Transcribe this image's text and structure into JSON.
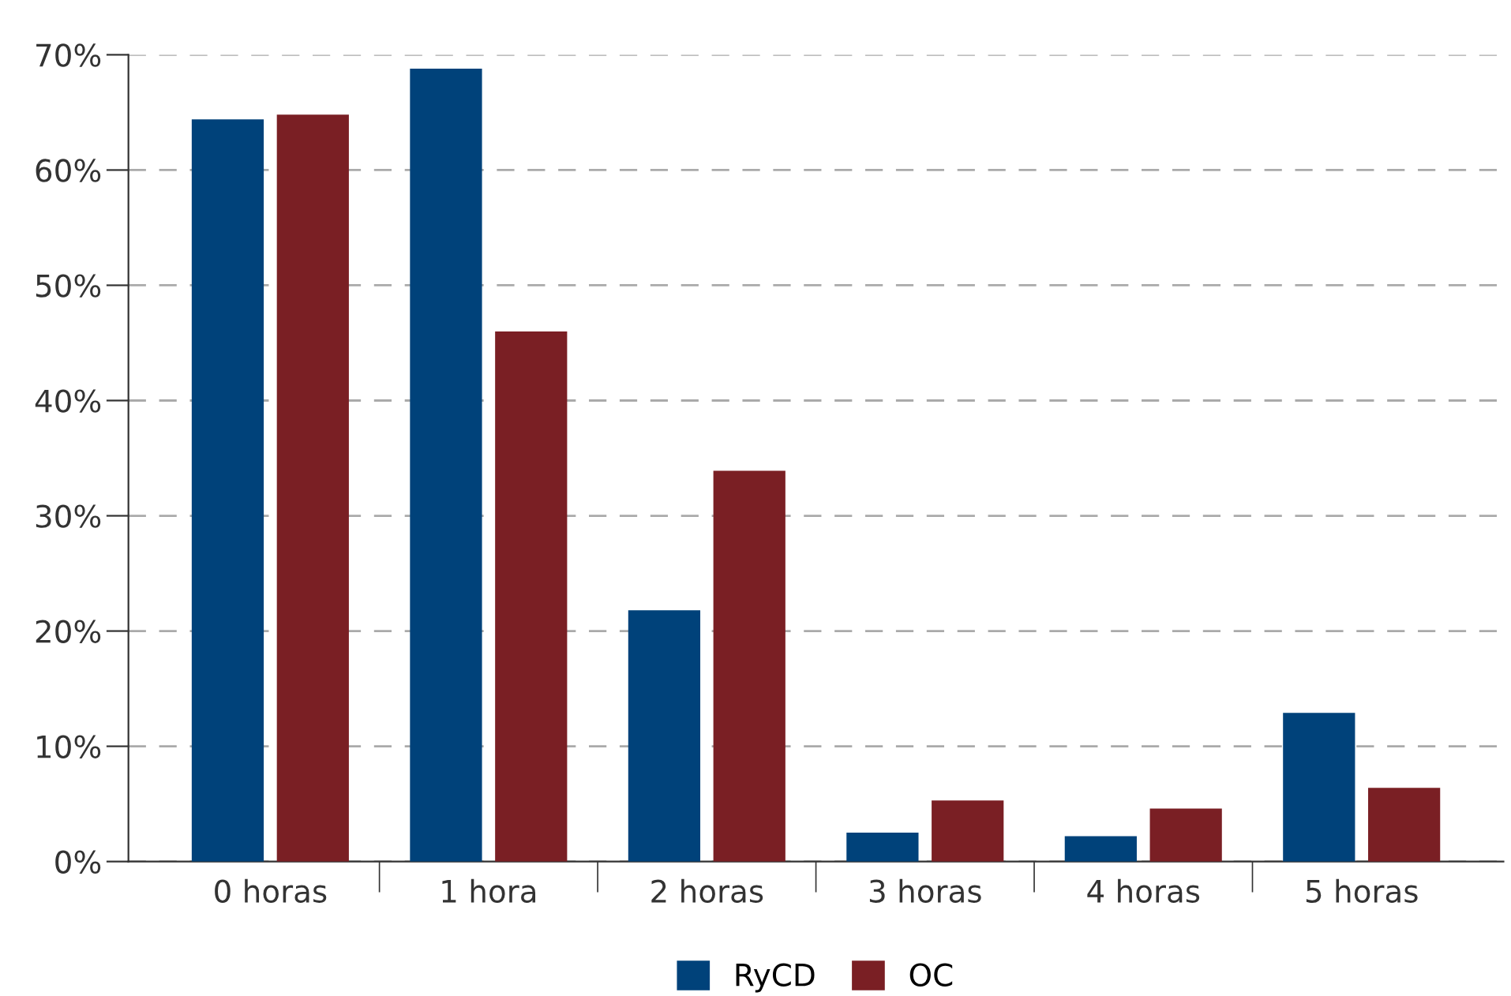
{
  "chart_data": {
    "type": "bar",
    "categories": [
      "0 horas",
      "1 hora",
      "2 horas",
      "3 horas",
      "4 horas",
      "5 horas"
    ],
    "series": [
      {
        "name": "RyCD",
        "color": "#00427a",
        "values": [
          64.4,
          68.8,
          21.8,
          2.5,
          2.2,
          12.9
        ]
      },
      {
        "name": "OC",
        "color": "#7a1f24",
        "values": [
          64.8,
          46.0,
          33.9,
          5.3,
          4.6,
          6.4
        ]
      }
    ],
    "ylim": [
      0,
      70
    ],
    "yticks": [
      {
        "value": 0,
        "label": "0%"
      },
      {
        "value": 10,
        "label": "10%"
      },
      {
        "value": 20,
        "label": "20%"
      },
      {
        "value": 30,
        "label": "30%"
      },
      {
        "value": 40,
        "label": "40%"
      },
      {
        "value": 50,
        "label": "50%"
      },
      {
        "value": 60,
        "label": "60%"
      },
      {
        "value": 70,
        "label": "70%"
      }
    ],
    "grid": "y",
    "legend": "bottom"
  }
}
